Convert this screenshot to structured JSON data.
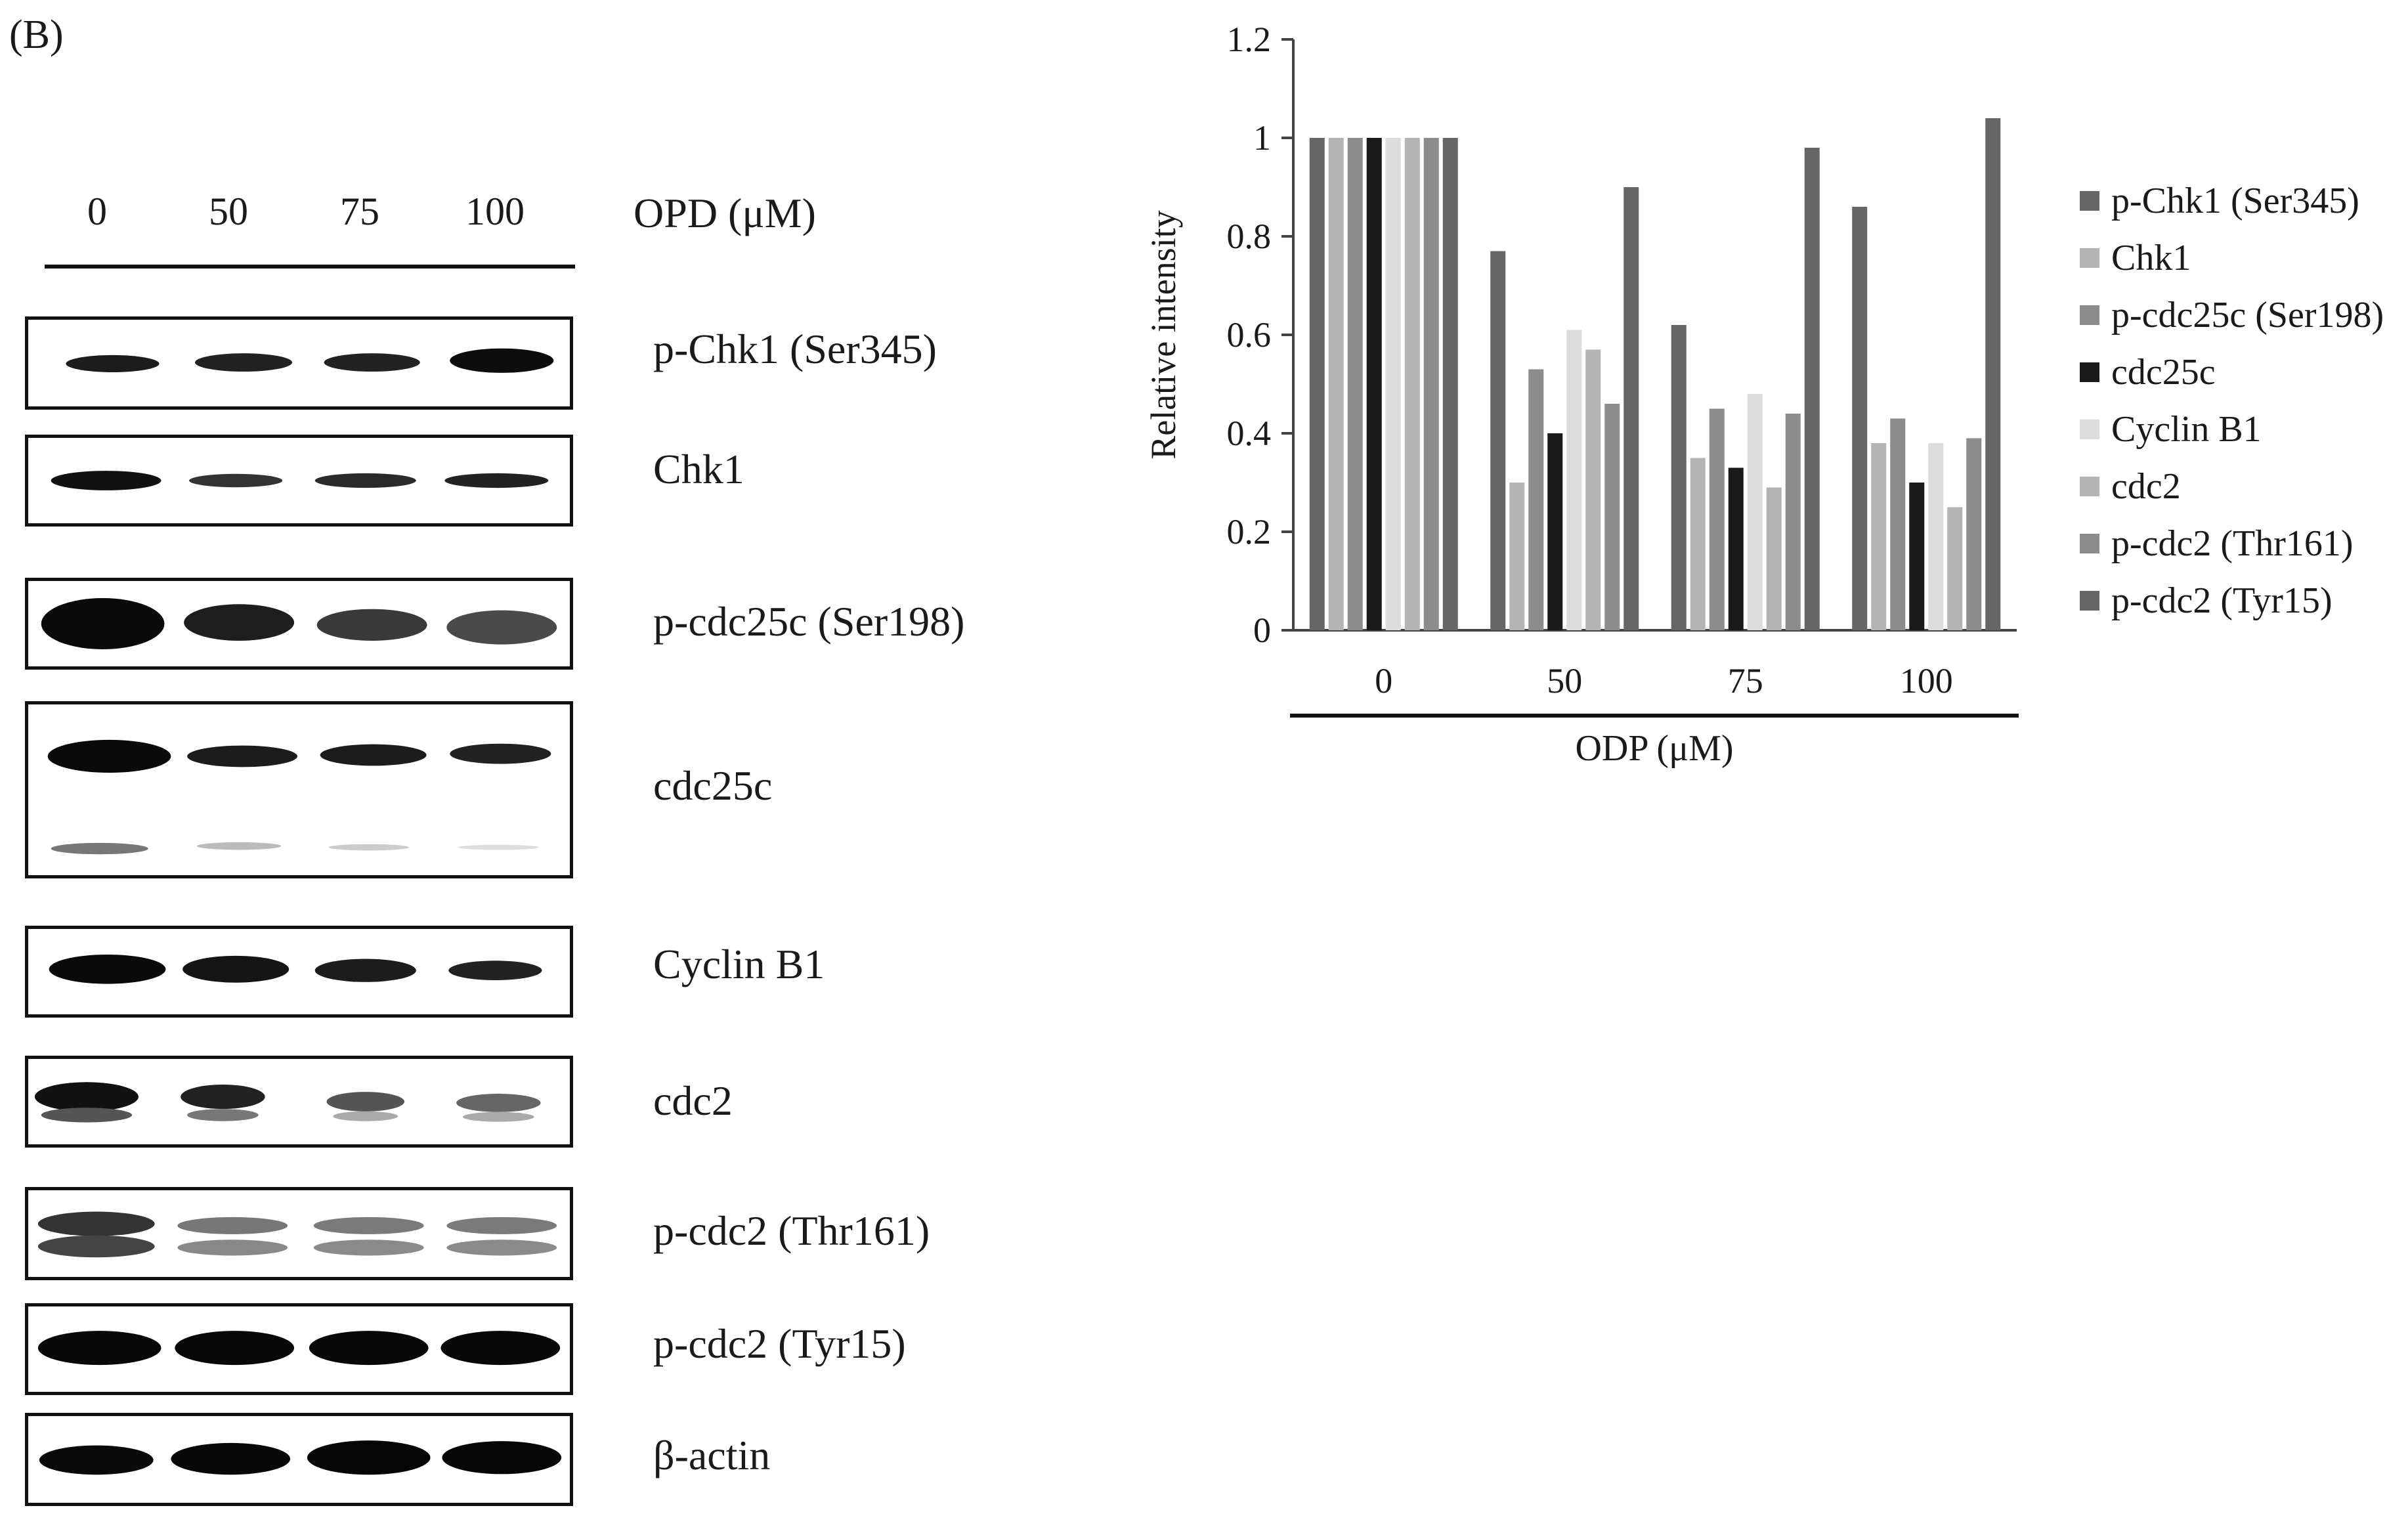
{
  "panel_label": "(B)",
  "blot": {
    "lanes": [
      "0",
      "50",
      "75",
      "100"
    ],
    "concentration_label": "OPD (μM)",
    "proteins": [
      "p-Chk1 (Ser345)",
      "Chk1",
      "p-cdc25c (Ser198)",
      "cdc25c",
      "Cyclin B1",
      "cdc2",
      "p-cdc2 (Thr161)",
      "p-cdc2 (Tyr15)",
      "β-actin"
    ]
  },
  "colors": {
    "p-Chk1 (Ser345)": "#666666",
    "Chk1": "#b4b4b4",
    "p-cdc25c (Ser198)": "#8c8c8c",
    "cdc25c": "#1a1a1a",
    "Cyclin B1": "#dcdcdc",
    "cdc2": "#b4b4b4",
    "p-cdc2 (Thr161)": "#8c8c8c",
    "p-cdc2 (Tyr15)": "#666666"
  },
  "chart_data": {
    "type": "bar",
    "title": "",
    "xlabel": "ODP (μM)",
    "ylabel": "Relative intensity",
    "categories": [
      "0",
      "50",
      "75",
      "100"
    ],
    "ylim": [
      0,
      1.2
    ],
    "yticks": [
      "0",
      "0.2",
      "0.4",
      "0.6",
      "0.8",
      "1",
      "1.2"
    ],
    "legend_position": "right",
    "series": [
      {
        "name": "p-Chk1 (Ser345)",
        "values": [
          1,
          0.77,
          0.62,
          0.86
        ]
      },
      {
        "name": "Chk1",
        "values": [
          1,
          0.3,
          0.35,
          0.38
        ]
      },
      {
        "name": "p-cdc25c (Ser198)",
        "values": [
          1,
          0.53,
          0.45,
          0.43
        ]
      },
      {
        "name": "cdc25c",
        "values": [
          1,
          0.4,
          0.33,
          0.3
        ]
      },
      {
        "name": "Cyclin B1",
        "values": [
          1,
          0.61,
          0.48,
          0.38
        ]
      },
      {
        "name": "cdc2",
        "values": [
          1,
          0.57,
          0.29,
          0.25
        ]
      },
      {
        "name": "p-cdc2 (Thr161)",
        "values": [
          1,
          0.46,
          0.44,
          0.39
        ]
      },
      {
        "name": "p-cdc2 (Tyr15)",
        "values": [
          1,
          0.9,
          0.98,
          1.04
        ]
      }
    ]
  }
}
